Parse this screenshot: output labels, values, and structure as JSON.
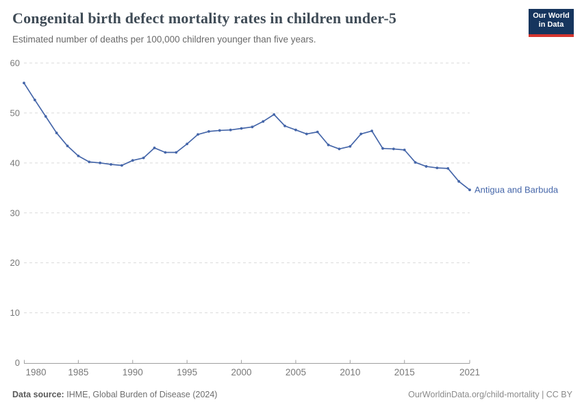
{
  "header": {
    "title": "Congenital birth defect mortality rates in children under-5",
    "subtitle": "Estimated number of deaths per 100,000 children younger than five years.",
    "logo": {
      "line1": "Our World",
      "line2": "in Data",
      "bg_color": "#16355e",
      "accent_color": "#d5362f"
    }
  },
  "chart_data": {
    "type": "line",
    "title": "Congenital birth defect mortality rates in children under-5",
    "subtitle": "Estimated number of deaths per 100,000 children younger than five years.",
    "xlabel": "",
    "ylabel": "",
    "xlim": [
      1980,
      2021
    ],
    "ylim": [
      0,
      60
    ],
    "xticks": [
      1980,
      1985,
      1990,
      1995,
      2000,
      2005,
      2010,
      2015,
      2021
    ],
    "yticks": [
      0,
      10,
      20,
      30,
      40,
      50,
      60
    ],
    "grid": "horizontal-dashed",
    "legend_position": "end-of-line-label",
    "series": [
      {
        "name": "Antigua and Barbuda",
        "color": "#4566a9",
        "x": [
          1980,
          1981,
          1982,
          1983,
          1984,
          1985,
          1986,
          1987,
          1988,
          1989,
          1990,
          1991,
          1992,
          1993,
          1994,
          1995,
          1996,
          1997,
          1998,
          1999,
          2000,
          2001,
          2002,
          2003,
          2004,
          2005,
          2006,
          2007,
          2008,
          2009,
          2010,
          2011,
          2012,
          2013,
          2014,
          2015,
          2016,
          2017,
          2018,
          2019,
          2020,
          2021
        ],
        "values": [
          56.0,
          52.6,
          49.3,
          46.0,
          43.4,
          41.4,
          40.2,
          40.0,
          39.7,
          39.5,
          40.5,
          41.0,
          43.0,
          42.1,
          42.1,
          43.8,
          45.7,
          46.3,
          46.5,
          46.6,
          46.9,
          47.2,
          48.3,
          49.7,
          47.4,
          46.6,
          45.8,
          46.2,
          43.6,
          42.8,
          43.3,
          45.8,
          46.4,
          42.9,
          42.8,
          42.6,
          40.1,
          39.3,
          39.0,
          38.9,
          36.3,
          34.6
        ]
      }
    ],
    "colors": {
      "gridline": "#d9d9d9",
      "axis": "#9e9e9e",
      "tick_label": "#787878"
    }
  },
  "footer": {
    "source_label": "Data source:",
    "source_text": "IHME, Global Burden of Disease (2024)",
    "link_text": "OurWorldinData.org/child-mortality | CC BY"
  }
}
